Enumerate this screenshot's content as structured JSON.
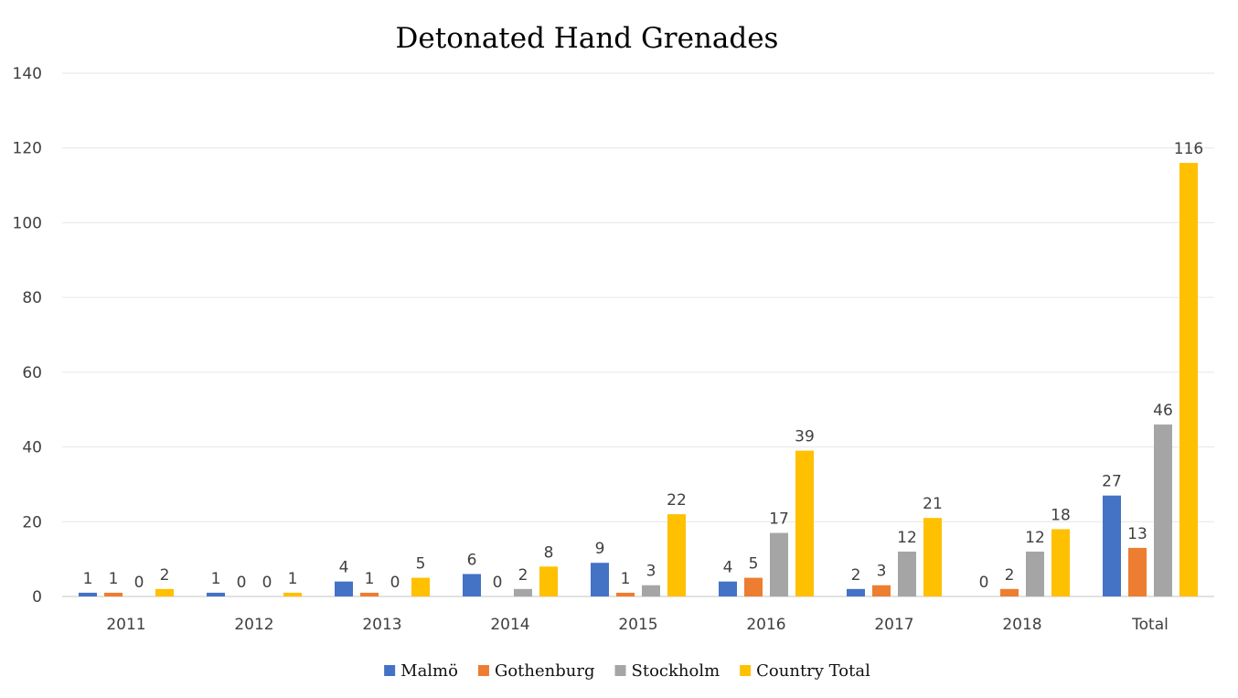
{
  "chart_data": {
    "type": "bar",
    "title": "Detonated Hand Grenades",
    "xlabel": "",
    "ylabel": "",
    "ylim": [
      0,
      140
    ],
    "yticks": [
      0,
      20,
      40,
      60,
      80,
      100,
      120,
      140
    ],
    "grid": true,
    "legend_position": "bottom",
    "categories": [
      "2011",
      "2012",
      "2013",
      "2014",
      "2015",
      "2016",
      "2017",
      "2018",
      "Total"
    ],
    "series": [
      {
        "name": "Malmö",
        "color": "#4472c4",
        "values": [
          1,
          1,
          4,
          6,
          9,
          4,
          2,
          0,
          27
        ]
      },
      {
        "name": "Gothenburg",
        "color": "#ed7d31",
        "values": [
          1,
          0,
          1,
          0,
          1,
          5,
          3,
          2,
          13
        ]
      },
      {
        "name": "Stockholm",
        "color": "#a5a5a5",
        "values": [
          0,
          0,
          0,
          2,
          3,
          17,
          12,
          12,
          46
        ]
      },
      {
        "name": "Country Total",
        "color": "#ffc000",
        "values": [
          2,
          1,
          5,
          8,
          22,
          39,
          21,
          18,
          116
        ]
      }
    ]
  }
}
